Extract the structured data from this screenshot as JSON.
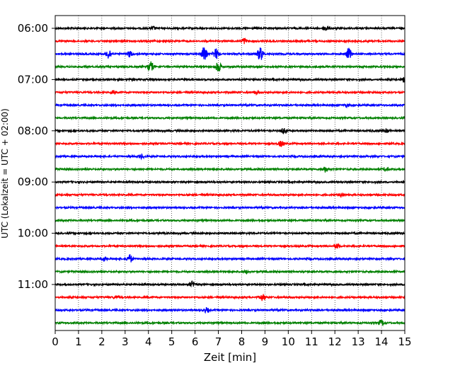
{
  "chart_data": {
    "type": "line",
    "subtype": "helicorder",
    "xlabel": "Zeit  [min]",
    "ylabel": "UTC (Lokalzeit = UTC + 02:00)",
    "xlim": [
      0,
      15
    ],
    "x_ticks": [
      0,
      1,
      2,
      3,
      4,
      5,
      6,
      7,
      8,
      9,
      10,
      11,
      12,
      13,
      14,
      15
    ],
    "y_tick_labels": [
      "06:00",
      "07:00",
      "08:00",
      "09:00",
      "10:00",
      "11:00"
    ],
    "trace_start_time": "06:00",
    "trace_interval_min": 15,
    "trace_count": 24,
    "vertical_grid": true,
    "grid_style": "dotted",
    "trace_colors": [
      "#000000",
      "#ff0000",
      "#0000ff",
      "#008000"
    ],
    "events": [
      {
        "trace": 0,
        "minute": 11.6,
        "amp": 0.9
      },
      {
        "trace": 0,
        "minute": 4.2,
        "amp": 0.5
      },
      {
        "trace": 1,
        "minute": 8.1,
        "amp": 0.9
      },
      {
        "trace": 2,
        "minute": 2.3,
        "amp": 1.5
      },
      {
        "trace": 2,
        "minute": 3.2,
        "amp": 0.9
      },
      {
        "trace": 2,
        "minute": 6.4,
        "amp": 2.6
      },
      {
        "trace": 2,
        "minute": 6.9,
        "amp": 1.6
      },
      {
        "trace": 2,
        "minute": 8.8,
        "amp": 2.2
      },
      {
        "trace": 2,
        "minute": 12.6,
        "amp": 1.7
      },
      {
        "trace": 3,
        "minute": 4.1,
        "amp": 1.6
      },
      {
        "trace": 3,
        "minute": 7.0,
        "amp": 1.6
      },
      {
        "trace": 4,
        "minute": 15.0,
        "amp": 0.8
      },
      {
        "trace": 5,
        "minute": 2.5,
        "amp": 0.5
      },
      {
        "trace": 5,
        "minute": 8.6,
        "amp": 0.4
      },
      {
        "trace": 6,
        "minute": 12.5,
        "amp": 0.4
      },
      {
        "trace": 8,
        "minute": 9.8,
        "amp": 0.9
      },
      {
        "trace": 8,
        "minute": 14.2,
        "amp": 0.5
      },
      {
        "trace": 9,
        "minute": 9.7,
        "amp": 0.9
      },
      {
        "trace": 10,
        "minute": 3.7,
        "amp": 0.6
      },
      {
        "trace": 11,
        "minute": 11.6,
        "amp": 0.8
      },
      {
        "trace": 11,
        "minute": 14.2,
        "amp": 0.5
      },
      {
        "trace": 13,
        "minute": 12.3,
        "amp": 0.5
      },
      {
        "trace": 17,
        "minute": 12.1,
        "amp": 0.8
      },
      {
        "trace": 18,
        "minute": 2.1,
        "amp": 0.6
      },
      {
        "trace": 18,
        "minute": 3.2,
        "amp": 1.3
      },
      {
        "trace": 19,
        "minute": 8.2,
        "amp": 0.3
      },
      {
        "trace": 20,
        "minute": 5.9,
        "amp": 0.9
      },
      {
        "trace": 21,
        "minute": 8.9,
        "amp": 1.0
      },
      {
        "trace": 21,
        "minute": 2.6,
        "amp": 0.4
      },
      {
        "trace": 22,
        "minute": 6.5,
        "amp": 0.7
      },
      {
        "trace": 23,
        "minute": 14.0,
        "amp": 0.8
      }
    ]
  }
}
